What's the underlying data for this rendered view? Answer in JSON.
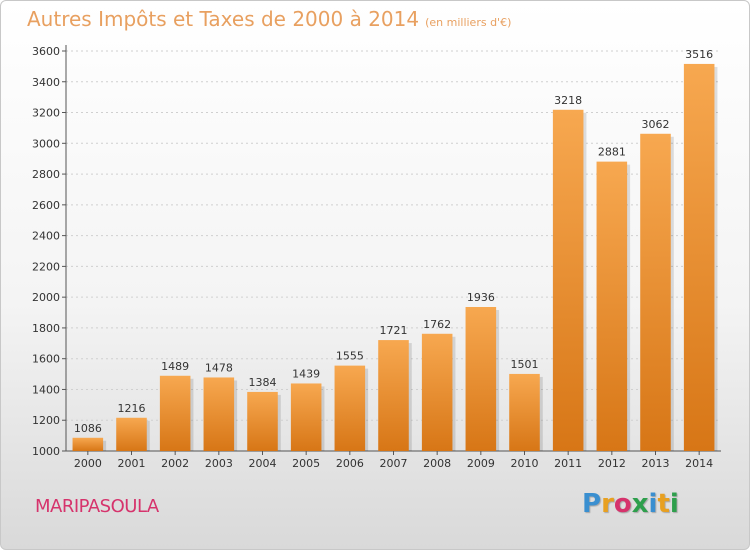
{
  "title": "Autres Impôts et Taxes de 2000 à 2014",
  "unit": "(en milliers d'€)",
  "commune": "MARIPASOULA",
  "logo": "Proxiti",
  "colors": {
    "bar_light": "#f6a44f",
    "bar_dark": "#d97818",
    "title": "#e8a060",
    "commune": "#d6336c"
  },
  "chart_data": {
    "type": "bar",
    "categories": [
      "2000",
      "2001",
      "2002",
      "2003",
      "2004",
      "2005",
      "2006",
      "2007",
      "2008",
      "2009",
      "2010",
      "2011",
      "2012",
      "2013",
      "2014"
    ],
    "values": [
      1086,
      1216,
      1489,
      1478,
      1384,
      1439,
      1555,
      1721,
      1762,
      1936,
      1501,
      3218,
      2881,
      3062,
      3516
    ],
    "ylim": [
      1000,
      3600
    ],
    "yticks": [
      1000,
      1200,
      1400,
      1600,
      1800,
      2000,
      2200,
      2400,
      2600,
      2800,
      3000,
      3200,
      3400,
      3600
    ],
    "grid": true
  }
}
